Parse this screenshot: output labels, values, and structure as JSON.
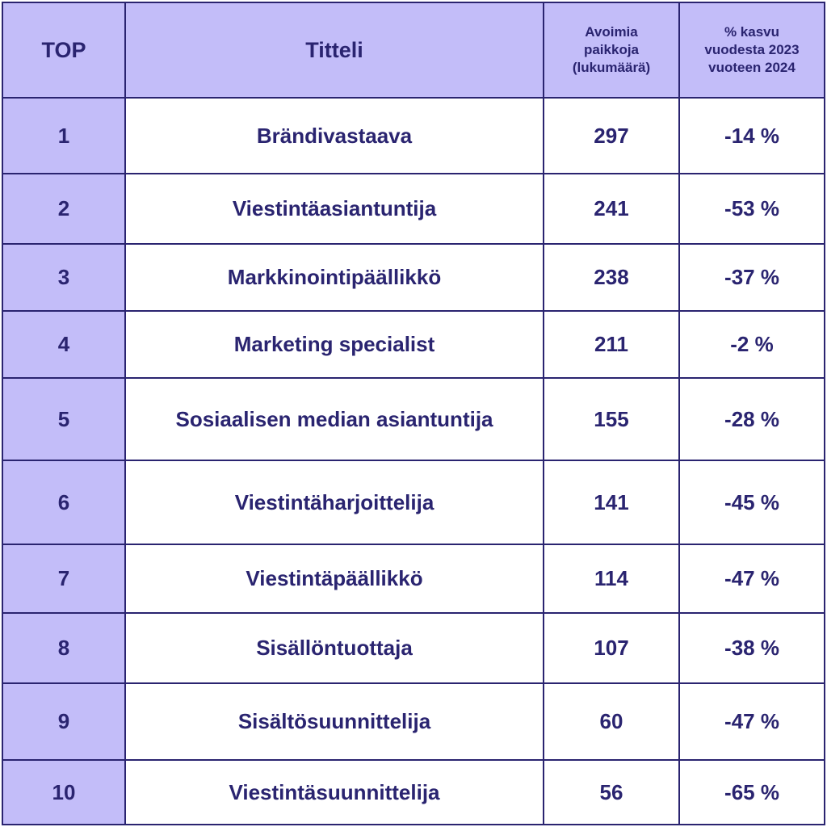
{
  "chart_data": {
    "type": "table",
    "columns": [
      "TOP",
      "Titteli",
      "Avoimia\npaikkoja\n(lukumäärä)",
      "% kasvu\nvuodesta 2023\nvuoteen 2024"
    ],
    "rows": [
      {
        "rank": "1",
        "title": "Brändivastaava",
        "openings": "297",
        "growth": "-14 %"
      },
      {
        "rank": "2",
        "title": "Viestintäasiantuntija",
        "openings": "241",
        "growth": "-53 %"
      },
      {
        "rank": "3",
        "title": "Markkinointipäällikkö",
        "openings": "238",
        "growth": "-37 %"
      },
      {
        "rank": "4",
        "title": "Marketing specialist",
        "openings": "211",
        "growth": "-2 %"
      },
      {
        "rank": "5",
        "title": "Sosiaalisen median asiantuntija",
        "openings": "155",
        "growth": "-28 %"
      },
      {
        "rank": "6",
        "title": "Viestintäharjoittelija",
        "openings": "141",
        "growth": "-45 %"
      },
      {
        "rank": "7",
        "title": "Viestintäpäällikkö",
        "openings": "114",
        "growth": "-47 %"
      },
      {
        "rank": "8",
        "title": "Sisällöntuottaja",
        "openings": "107",
        "growth": "-38 %"
      },
      {
        "rank": "9",
        "title": "Sisältösuunnittelija",
        "openings": "60",
        "growth": "-47 %"
      },
      {
        "rank": "10",
        "title": "Viestintäsuunnittelija",
        "openings": "56",
        "growth": "-65 %"
      }
    ]
  },
  "colors": {
    "header_bg": "#c3bdf9",
    "rank_bg": "#c3bdf9",
    "text": "#2a2470",
    "border": "#2a2470",
    "cell_bg": "#ffffff"
  }
}
